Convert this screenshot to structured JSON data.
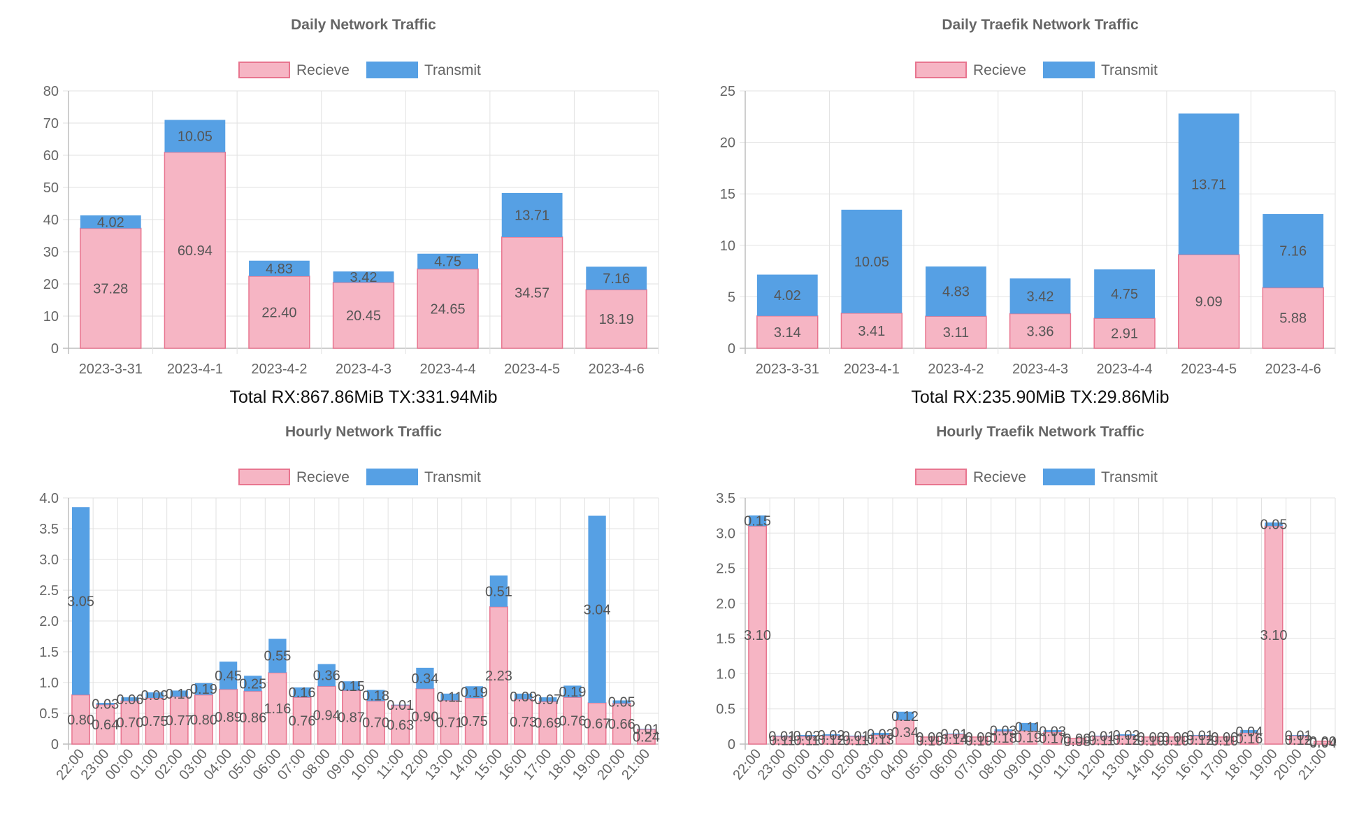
{
  "colors": {
    "receive_fill": "#f6b5c4",
    "receive_stroke": "#e8758f",
    "transmit_fill": "#56a0e4",
    "grid": "#e2e2e2",
    "axis": "#bdbdbd",
    "text": "#666666",
    "total_text": "#111111"
  },
  "chart_data": [
    {
      "type": "bar",
      "stacked": true,
      "title": "Daily Network Traffic",
      "categories": [
        "2023-3-31",
        "2023-4-1",
        "2023-4-2",
        "2023-4-3",
        "2023-4-4",
        "2023-4-5",
        "2023-4-6"
      ],
      "series": [
        {
          "name": "Recieve",
          "values": [
            37.28,
            60.94,
            22.4,
            20.45,
            24.65,
            34.57,
            18.19
          ]
        },
        {
          "name": "Transmit",
          "values": [
            4.02,
            10.05,
            4.83,
            3.42,
            4.75,
            13.71,
            7.16
          ]
        }
      ],
      "yticks": [
        "0",
        "10",
        "20",
        "30",
        "40",
        "50",
        "60",
        "70",
        "80"
      ],
      "ylim": [
        0,
        80
      ],
      "xlabel": "",
      "ylabel": "",
      "legend": "top",
      "grid": true,
      "total": "Total RX:867.86MiB TX:331.94Mib"
    },
    {
      "type": "bar",
      "stacked": true,
      "title": "Daily Traefik Network Traffic",
      "categories": [
        "2023-3-31",
        "2023-4-1",
        "2023-4-2",
        "2023-4-3",
        "2023-4-4",
        "2023-4-5",
        "2023-4-6"
      ],
      "series": [
        {
          "name": "Recieve",
          "values": [
            3.14,
            3.41,
            3.11,
            3.36,
            2.91,
            9.09,
            5.88
          ]
        },
        {
          "name": "Transmit",
          "values": [
            4.02,
            10.05,
            4.83,
            3.42,
            4.75,
            13.71,
            7.16
          ]
        }
      ],
      "yticks": [
        "0",
        "5",
        "10",
        "15",
        "20",
        "25"
      ],
      "ylim": [
        0,
        25
      ],
      "xlabel": "",
      "ylabel": "",
      "legend": "top",
      "grid": true,
      "total": "Total RX:235.90MiB TX:29.86Mib"
    },
    {
      "type": "bar",
      "stacked": true,
      "title": "Hourly Network Traffic",
      "categories": [
        "22:00",
        "23:00",
        "00:00",
        "01:00",
        "02:00",
        "03:00",
        "04:00",
        "05:00",
        "06:00",
        "07:00",
        "08:00",
        "09:00",
        "10:00",
        "11:00",
        "12:00",
        "13:00",
        "14:00",
        "15:00",
        "16:00",
        "17:00",
        "18:00",
        "19:00",
        "20:00",
        "21:00"
      ],
      "series": [
        {
          "name": "Recieve",
          "values": [
            0.8,
            0.64,
            0.7,
            0.75,
            0.77,
            0.8,
            0.89,
            0.86,
            1.16,
            0.76,
            0.94,
            0.87,
            0.7,
            0.63,
            0.9,
            0.71,
            0.75,
            2.23,
            0.73,
            0.69,
            0.76,
            0.67,
            0.66,
            0.24
          ]
        },
        {
          "name": "Transmit",
          "values": [
            3.05,
            0.03,
            0.06,
            0.09,
            0.1,
            0.19,
            0.45,
            0.25,
            0.55,
            0.16,
            0.36,
            0.15,
            0.18,
            0.01,
            0.34,
            0.11,
            0.19,
            0.51,
            0.09,
            0.07,
            0.19,
            3.04,
            0.05,
            0.01
          ]
        }
      ],
      "yticks": [
        "0",
        "0.5",
        "1.0",
        "1.5",
        "2.0",
        "2.5",
        "3.0",
        "3.5",
        "4.0"
      ],
      "ylim": [
        0,
        4.0
      ],
      "xlabel": "",
      "ylabel": "",
      "legend": "top",
      "grid": true
    },
    {
      "type": "bar",
      "stacked": true,
      "title": "Hourly Traefik Network Traffic",
      "categories": [
        "22:00",
        "23:00",
        "00:00",
        "01:00",
        "02:00",
        "03:00",
        "04:00",
        "05:00",
        "06:00",
        "07:00",
        "08:00",
        "09:00",
        "10:00",
        "11:00",
        "12:00",
        "13:00",
        "14:00",
        "15:00",
        "16:00",
        "17:00",
        "18:00",
        "19:00",
        "20:00",
        "21:00"
      ],
      "series": [
        {
          "name": "Recieve",
          "values": [
            3.1,
            0.11,
            0.11,
            0.12,
            0.11,
            0.13,
            0.34,
            0.1,
            0.14,
            0.1,
            0.18,
            0.19,
            0.17,
            0.08,
            0.11,
            0.12,
            0.1,
            0.1,
            0.12,
            0.1,
            0.16,
            3.1,
            0.12,
            0.04
          ]
        },
        {
          "name": "Transmit",
          "values": [
            0.15,
            0.01,
            0.02,
            0.02,
            0.01,
            0.03,
            0.12,
            0.0,
            0.01,
            0.0,
            0.03,
            0.11,
            0.03,
            0.0,
            0.01,
            0.02,
            0.0,
            0.0,
            0.01,
            0.0,
            0.04,
            0.05,
            0.01,
            0.0
          ]
        }
      ],
      "yticks": [
        "0",
        "0.5",
        "1.0",
        "1.5",
        "2.0",
        "2.5",
        "3.0",
        "3.5"
      ],
      "ylim": [
        0,
        3.5
      ],
      "xlabel": "",
      "ylabel": "",
      "legend": "top",
      "grid": true
    }
  ]
}
